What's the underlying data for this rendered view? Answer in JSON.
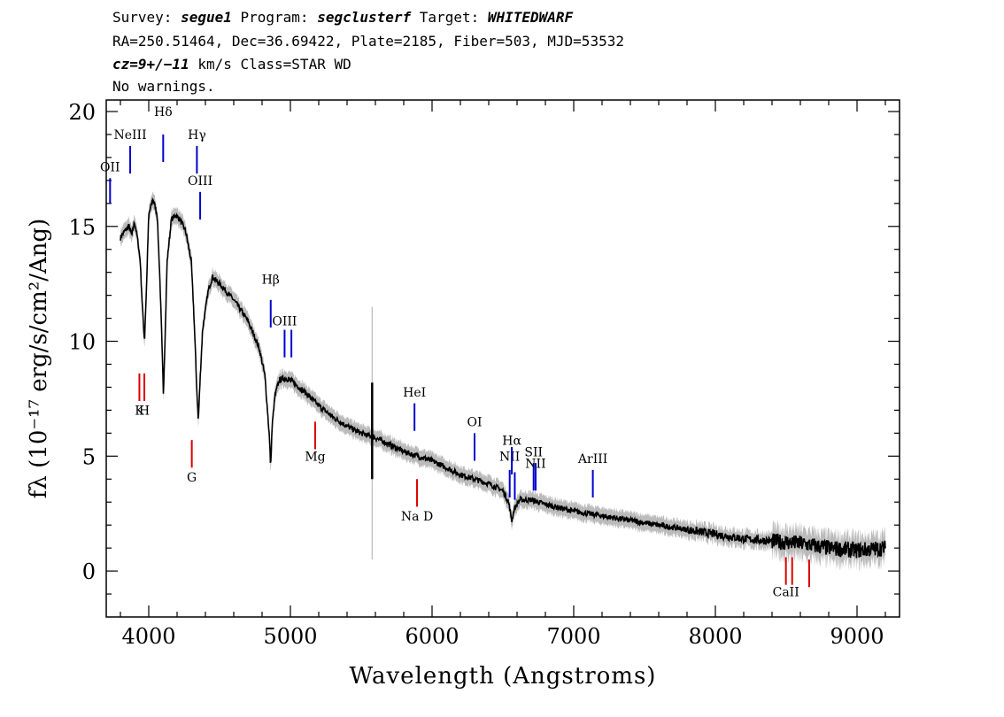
{
  "header": {
    "line1": {
      "survey_label": "Survey: ",
      "survey": "segue1",
      "program_label": " Program: ",
      "program": "segclusterf",
      "target_label": " Target: ",
      "target": "WHITEDWARF"
    },
    "line2": "RA=250.51464, Dec=36.69422, Plate=2185, Fiber=503, MJD=53532",
    "line3": {
      "cz": "cz=9+/−11",
      "rest": " km/s Class=STAR WD"
    },
    "line4": "No warnings."
  },
  "chart_data": {
    "type": "line",
    "xlabel": "Wavelength (Angstroms)",
    "ylabel": "fλ (10⁻¹⁷ erg/s/cm²/Ang)",
    "xlim": [
      3700,
      9300
    ],
    "ylim": [
      -2,
      20.5
    ],
    "xticks": [
      4000,
      5000,
      6000,
      7000,
      8000,
      9000
    ],
    "yticks": [
      0,
      5,
      10,
      15,
      20
    ],
    "grid": false,
    "colors": {
      "flux": "#000000",
      "error_band": "#bbbbbb",
      "emission": "#0000cc",
      "absorption": "#dd0000"
    },
    "series": [
      {
        "x": [
          3800,
          3830,
          3860,
          3880,
          3900,
          3920,
          3940,
          3955,
          3970,
          3985,
          4000,
          4030,
          4060,
          4080,
          4100,
          4102,
          4110,
          4130,
          4160,
          4190,
          4220,
          4260,
          4300,
          4320,
          4340,
          4350,
          4360,
          4380,
          4420,
          4450,
          4500,
          4600,
          4700,
          4780,
          4820,
          4850,
          4861,
          4870,
          4890,
          4920,
          4960,
          5000,
          5100,
          5200,
          5300,
          5400,
          5500,
          5600,
          5700,
          5800,
          5900,
          6000,
          6100,
          6200,
          6300,
          6400,
          6500,
          6540,
          6563,
          6580,
          6620,
          6700,
          6800,
          7000,
          7200,
          7400,
          7600,
          7800,
          8000,
          8200,
          8400,
          8600,
          8800,
          9000,
          9200
        ],
        "y": [
          14.5,
          14.8,
          15.0,
          14.6,
          15.2,
          14.5,
          13.5,
          11.5,
          10.0,
          12.5,
          15.5,
          16.2,
          15.5,
          12.5,
          8.5,
          7.6,
          9.0,
          13.5,
          15.3,
          15.5,
          15.3,
          14.8,
          13.5,
          11.0,
          7.8,
          6.5,
          8.0,
          10.5,
          12.2,
          12.8,
          12.5,
          11.8,
          10.9,
          9.7,
          8.5,
          6.0,
          4.5,
          6.2,
          7.6,
          8.3,
          8.4,
          8.3,
          7.8,
          7.2,
          6.7,
          6.3,
          6.0,
          5.8,
          5.5,
          5.2,
          5.0,
          4.8,
          4.5,
          4.2,
          4.0,
          3.8,
          3.5,
          3.0,
          2.2,
          2.7,
          3.1,
          3.1,
          2.9,
          2.6,
          2.4,
          2.2,
          2.0,
          1.8,
          1.6,
          1.4,
          1.3,
          1.2,
          1.0,
          0.9,
          1.0
        ]
      }
    ],
    "spike": {
      "x": 5577,
      "low": 4.0,
      "high": 8.2
    },
    "line_markers": [
      {
        "label": "OII",
        "x": 3727,
        "y1": 16.0,
        "y2": 17.1,
        "label_y": 17.4,
        "type": "emission"
      },
      {
        "label": "NeIII",
        "x": 3869,
        "y1": 17.3,
        "y2": 18.5,
        "label_y": 18.8,
        "type": "emission"
      },
      {
        "label": "Hδ",
        "x": 4102,
        "y1": 17.8,
        "y2": 19.0,
        "label_y": 19.8,
        "type": "emission"
      },
      {
        "label": "Hγ",
        "x": 4340,
        "y1": 17.3,
        "y2": 18.5,
        "label_y": 18.8,
        "type": "emission"
      },
      {
        "label": "OIII",
        "x": 4363,
        "y1": 15.3,
        "y2": 16.5,
        "label_y": 16.8,
        "type": "emission"
      },
      {
        "label": "Hβ",
        "x": 4861,
        "y1": 10.6,
        "y2": 11.8,
        "label_y": 12.5,
        "type": "emission"
      },
      {
        "label": "OIII",
        "x": 4959,
        "y1": 9.3,
        "y2": 10.5,
        "label_y": 10.7,
        "type": "emission"
      },
      {
        "label": "",
        "x": 5007,
        "y1": 9.3,
        "y2": 10.5,
        "label_y": 10.7,
        "type": "emission"
      },
      {
        "label": "HeI",
        "x": 5876,
        "y1": 6.1,
        "y2": 7.3,
        "label_y": 7.6,
        "type": "emission"
      },
      {
        "label": "OI",
        "x": 6300,
        "y1": 4.8,
        "y2": 6.0,
        "label_y": 6.3,
        "type": "emission"
      },
      {
        "label": "NII",
        "x": 6548,
        "y1": 3.2,
        "y2": 4.4,
        "label_y": 4.8,
        "type": "emission"
      },
      {
        "label": "Hα",
        "x": 6563,
        "y1": 4.2,
        "y2": 5.4,
        "label_y": 5.5,
        "type": "emission"
      },
      {
        "label": "",
        "x": 6584,
        "y1": 3.1,
        "y2": 4.3,
        "label_y": 4.6,
        "type": "emission"
      },
      {
        "label": "SII",
        "x": 6717,
        "y1": 3.5,
        "y2": 4.7,
        "label_y": 5.0,
        "type": "emission"
      },
      {
        "label": "NII",
        "x": 6731,
        "y1": 3.5,
        "y2": 4.7,
        "label_y": 4.5,
        "type": "emission"
      },
      {
        "label": "ArIII",
        "x": 7135,
        "y1": 3.2,
        "y2": 4.4,
        "label_y": 4.7,
        "type": "emission"
      },
      {
        "label": "K",
        "x": 3934,
        "y1": 7.4,
        "y2": 8.6,
        "label_y": 6.8,
        "type": "absorption"
      },
      {
        "label": "H",
        "x": 3969,
        "y1": 7.4,
        "y2": 8.6,
        "label_y": 6.8,
        "type": "absorption"
      },
      {
        "label": "G",
        "x": 4304,
        "y1": 4.5,
        "y2": 5.7,
        "label_y": 3.9,
        "type": "absorption"
      },
      {
        "label": "Mg",
        "x": 5175,
        "y1": 5.3,
        "y2": 6.5,
        "label_y": 4.8,
        "type": "absorption"
      },
      {
        "label": "Na D",
        "x": 5894,
        "y1": 2.8,
        "y2": 4.0,
        "label_y": 2.2,
        "type": "absorption"
      },
      {
        "label": "CaII",
        "x": 8498,
        "y1": -0.6,
        "y2": 0.6,
        "label_y": -1.1,
        "type": "absorption"
      },
      {
        "label": "",
        "x": 8542,
        "y1": -0.6,
        "y2": 0.6,
        "label_y": -1.1,
        "type": "absorption"
      },
      {
        "label": "",
        "x": 8662,
        "y1": -0.7,
        "y2": 0.5,
        "label_y": -1.1,
        "type": "absorption"
      }
    ]
  }
}
